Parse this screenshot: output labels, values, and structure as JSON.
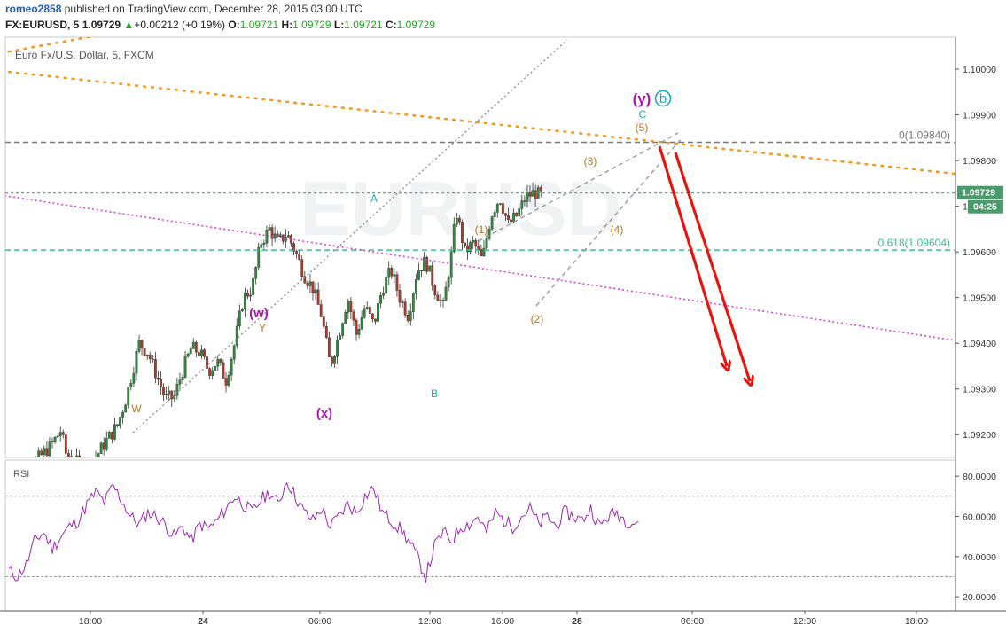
{
  "header": {
    "author": "romeo2858",
    "published": "published on TradingView.com, December 28, 2015 03:00 UTC",
    "symbol": "FX:EURUSD, 5",
    "last": "1.09729",
    "change_arrow": "▲",
    "change": "+0.00212 (+0.19%)",
    "o_label": "O:",
    "o": "1.09721",
    "h_label": "H:",
    "h": "1.09729",
    "l_label": "L:",
    "l": "1.09721",
    "c_label": "C:",
    "c": "1.09729"
  },
  "chart_data": [
    {
      "type": "candlestick",
      "title": "Euro Fx/U.S. Dollar, 5, FXCM",
      "watermark": "EURUSD",
      "ylim": [
        1.0915,
        1.1007
      ],
      "y_ticks": [
        "1.10000",
        "1.09900",
        "1.09800",
        "1.09700",
        "1.09600",
        "1.09500",
        "1.09400",
        "1.09300",
        "1.09200"
      ],
      "x_ticks": [
        "18:00",
        "24",
        "06:00",
        "12:00",
        "16:00",
        "28",
        "06:00",
        "12:00",
        "18:00"
      ],
      "bold_x_ticks": [
        "24",
        "28"
      ],
      "last_price": "1.09729",
      "countdown": "04:25",
      "close_path": [
        [
          0,
          1.0905
        ],
        [
          5,
          1.0913
        ],
        [
          10,
          1.0918
        ],
        [
          12,
          1.0921
        ],
        [
          13,
          1.0916
        ],
        [
          18,
          1.0912
        ],
        [
          22,
          1.0918
        ],
        [
          25,
          1.0922
        ],
        [
          27,
          1.0928
        ],
        [
          30,
          1.094
        ],
        [
          32,
          1.0938
        ],
        [
          34,
          1.0933
        ],
        [
          36,
          1.0928
        ],
        [
          38,
          1.0928
        ],
        [
          40,
          1.0934
        ],
        [
          42,
          1.0939
        ],
        [
          44,
          1.0938
        ],
        [
          46,
          1.0934
        ],
        [
          48,
          1.0936
        ],
        [
          50,
          1.0932
        ],
        [
          52,
          1.094
        ],
        [
          54,
          1.095
        ],
        [
          56,
          1.0952
        ],
        [
          58,
          1.0962
        ],
        [
          60,
          1.0965
        ],
        [
          62,
          1.0962
        ],
        [
          64,
          1.0964
        ],
        [
          66,
          1.096
        ],
        [
          68,
          1.0955
        ],
        [
          70,
          1.0952
        ],
        [
          72,
          1.0946
        ],
        [
          74,
          1.0935
        ],
        [
          76,
          1.0942
        ],
        [
          78,
          1.095
        ],
        [
          80,
          1.0942
        ],
        [
          82,
          1.0948
        ],
        [
          84,
          1.0944
        ],
        [
          86,
          1.0952
        ],
        [
          88,
          1.0956
        ],
        [
          90,
          1.095
        ],
        [
          92,
          1.0946
        ],
        [
          94,
          1.0956
        ],
        [
          96,
          1.0958
        ],
        [
          98,
          1.0952
        ],
        [
          100,
          1.0948
        ],
        [
          102,
          1.096
        ],
        [
          103,
          1.0969
        ],
        [
          105,
          1.096
        ],
        [
          107,
          1.0962
        ],
        [
          109,
          1.0958
        ],
        [
          111,
          1.0968
        ],
        [
          113,
          1.0972
        ],
        [
          115,
          1.0966
        ],
        [
          117,
          1.0968
        ],
        [
          119,
          1.0972
        ],
        [
          121,
          1.0973
        ],
        [
          123,
          1.0972
        ]
      ],
      "levels": [
        {
          "label": "0(1.09840)",
          "price": 1.0984,
          "style": "dashed",
          "color": "#787878"
        },
        {
          "label": "0.618(1.09604)",
          "price": 1.09604,
          "style": "dashed",
          "color": "#3dbf8f"
        },
        {
          "label": "",
          "price": 1.09729,
          "style": "dotted",
          "color": "#4c9a6c"
        }
      ],
      "wave_labels": [
        {
          "text": "(y)",
          "color": "#b015b0"
        },
        {
          "text": "b",
          "color": "#19a9c4",
          "circled": true
        },
        {
          "text": "C",
          "color": "#19a9c4"
        },
        {
          "text": "(5)",
          "color": "#b8761a"
        },
        {
          "text": "(3)",
          "color": "#b8761a"
        },
        {
          "text": "(1)",
          "color": "#b8761a"
        },
        {
          "text": "(4)",
          "color": "#b8761a"
        },
        {
          "text": "(2)",
          "color": "#b8761a"
        },
        {
          "text": "A",
          "color": "#19a9c4"
        },
        {
          "text": "B",
          "color": "#19a9c4"
        },
        {
          "text": "(w)",
          "color": "#b015b0"
        },
        {
          "text": "Y",
          "color": "#b8761a"
        },
        {
          "text": "(x)",
          "color": "#b015b0"
        },
        {
          "text": "W",
          "color": "#b8761a"
        }
      ]
    },
    {
      "type": "line",
      "title": "RSI",
      "ylim": [
        13,
        88
      ],
      "y_ticks": [
        "80.0000",
        "60.0000",
        "40.0000",
        "20.0000"
      ],
      "bands": [
        70,
        30
      ],
      "series": [
        {
          "color": "#9c27b0",
          "values": [
            [
              0,
              33
            ],
            [
              2,
              30
            ],
            [
              4,
              36
            ],
            [
              6,
              48
            ],
            [
              8,
              52
            ],
            [
              10,
              44
            ],
            [
              12,
              50
            ],
            [
              14,
              55
            ],
            [
              16,
              58
            ],
            [
              18,
              66
            ],
            [
              20,
              72
            ],
            [
              22,
              67
            ],
            [
              24,
              75
            ],
            [
              26,
              68
            ],
            [
              28,
              60
            ],
            [
              30,
              56
            ],
            [
              32,
              62
            ],
            [
              34,
              60
            ],
            [
              36,
              56
            ],
            [
              38,
              50
            ],
            [
              40,
              55
            ],
            [
              42,
              48
            ],
            [
              44,
              56
            ],
            [
              46,
              54
            ],
            [
              48,
              58
            ],
            [
              50,
              64
            ],
            [
              52,
              70
            ],
            [
              54,
              66
            ],
            [
              56,
              62
            ],
            [
              58,
              68
            ],
            [
              60,
              72
            ],
            [
              62,
              66
            ],
            [
              64,
              78
            ],
            [
              66,
              70
            ],
            [
              68,
              62
            ],
            [
              70,
              58
            ],
            [
              72,
              64
            ],
            [
              74,
              55
            ],
            [
              76,
              60
            ],
            [
              78,
              66
            ],
            [
              80,
              62
            ],
            [
              82,
              70
            ],
            [
              84,
              74
            ],
            [
              86,
              62
            ],
            [
              88,
              58
            ],
            [
              90,
              54
            ],
            [
              92,
              48
            ],
            [
              94,
              40
            ],
            [
              96,
              30
            ],
            [
              98,
              45
            ],
            [
              100,
              52
            ],
            [
              102,
              48
            ],
            [
              104,
              55
            ],
            [
              106,
              56
            ],
            [
              108,
              60
            ],
            [
              110,
              52
            ],
            [
              112,
              62
            ],
            [
              114,
              58
            ],
            [
              116,
              55
            ],
            [
              118,
              60
            ],
            [
              120,
              64
            ],
            [
              122,
              56
            ],
            [
              124,
              60
            ],
            [
              126,
              55
            ],
            [
              128,
              62
            ],
            [
              130,
              60
            ],
            [
              132,
              58
            ],
            [
              134,
              64
            ],
            [
              136,
              55
            ],
            [
              138,
              60
            ],
            [
              140,
              62
            ],
            [
              142,
              58
            ],
            [
              144,
              57
            ],
            [
              145,
              58
            ]
          ]
        }
      ]
    }
  ]
}
